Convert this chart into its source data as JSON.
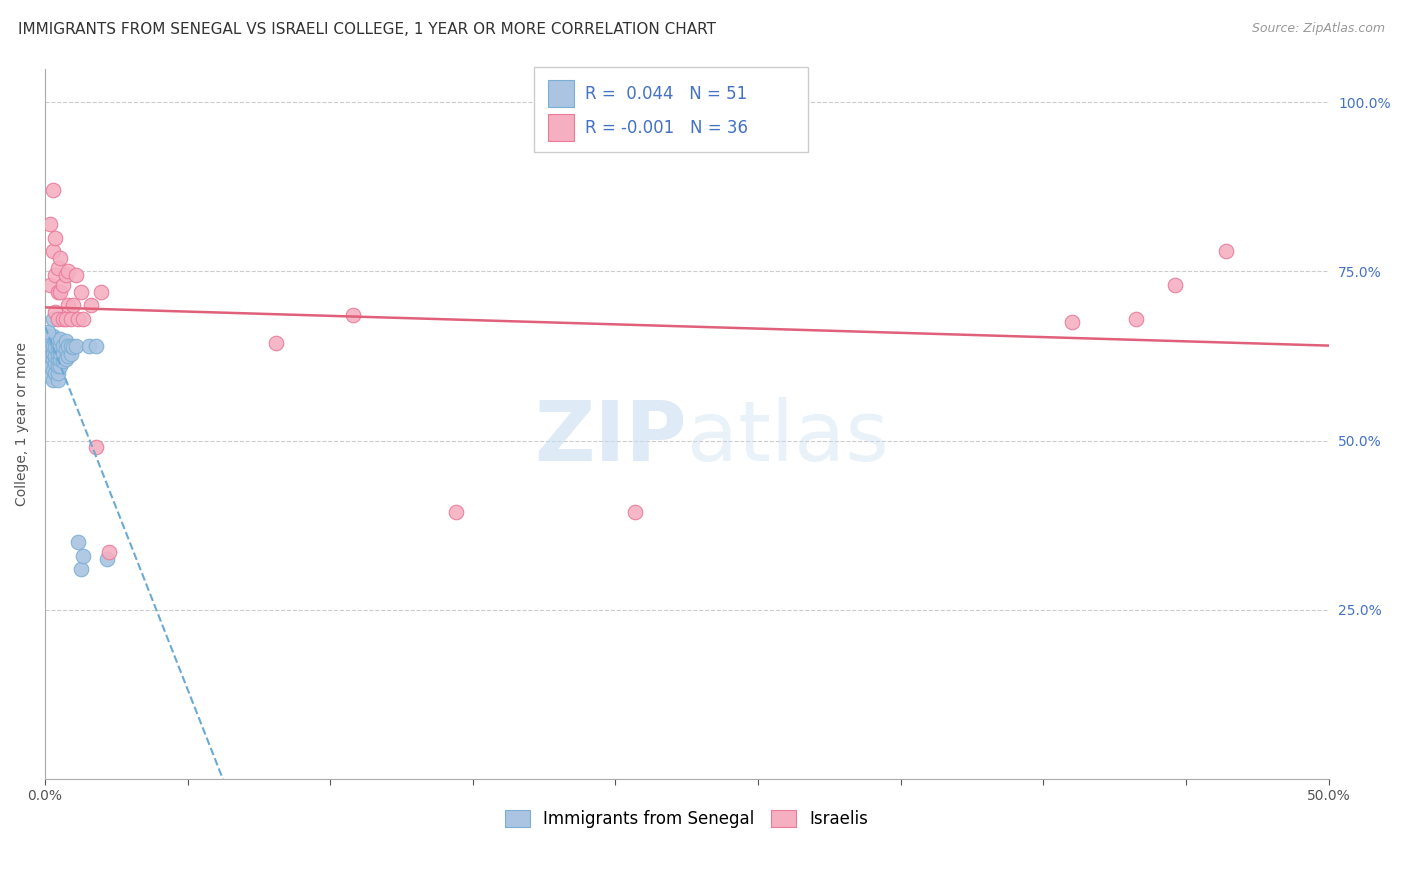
{
  "title": "IMMIGRANTS FROM SENEGAL VS ISRAELI COLLEGE, 1 YEAR OR MORE CORRELATION CHART",
  "source": "Source: ZipAtlas.com",
  "ylabel": "College, 1 year or more",
  "ylabel_ticks": [
    0.0,
    0.25,
    0.5,
    0.75,
    1.0
  ],
  "ylabel_tick_labels": [
    "",
    "25.0%",
    "50.0%",
    "75.0%",
    "100.0%"
  ],
  "xmin": 0.0,
  "xmax": 0.5,
  "ymin": 0.0,
  "ymax": 1.05,
  "legend_blue_label": "Immigrants from Senegal",
  "legend_pink_label": "Israelis",
  "R_blue": 0.044,
  "N_blue": 51,
  "R_pink": -0.001,
  "N_pink": 36,
  "blue_color": "#aac4e2",
  "pink_color": "#f5afc0",
  "blue_edge": "#7bafd4",
  "pink_edge": "#e87a9a",
  "trend_blue_color": "#6aaad4",
  "trend_pink_color": "#e0607a",
  "watermark_zip": "ZIP",
  "watermark_atlas": "atlas",
  "blue_x": [
    0.001,
    0.001,
    0.001,
    0.002,
    0.002,
    0.002,
    0.002,
    0.002,
    0.003,
    0.003,
    0.003,
    0.003,
    0.003,
    0.003,
    0.004,
    0.004,
    0.004,
    0.004,
    0.004,
    0.005,
    0.005,
    0.005,
    0.005,
    0.005,
    0.005,
    0.005,
    0.006,
    0.006,
    0.006,
    0.006,
    0.006,
    0.007,
    0.007,
    0.007,
    0.008,
    0.008,
    0.008,
    0.009,
    0.009,
    0.01,
    0.01,
    0.011,
    0.012,
    0.013,
    0.014,
    0.015,
    0.017,
    0.02,
    0.024,
    0.001,
    0.003
  ],
  "blue_y": [
    0.615,
    0.635,
    0.655,
    0.595,
    0.61,
    0.625,
    0.64,
    0.655,
    0.59,
    0.605,
    0.62,
    0.63,
    0.64,
    0.655,
    0.6,
    0.615,
    0.625,
    0.638,
    0.65,
    0.59,
    0.6,
    0.61,
    0.62,
    0.628,
    0.638,
    0.648,
    0.61,
    0.62,
    0.63,
    0.64,
    0.65,
    0.618,
    0.63,
    0.64,
    0.62,
    0.635,
    0.648,
    0.625,
    0.64,
    0.628,
    0.64,
    0.638,
    0.64,
    0.35,
    0.31,
    0.33,
    0.64,
    0.64,
    0.325,
    0.66,
    0.68
  ],
  "pink_x": [
    0.002,
    0.002,
    0.003,
    0.003,
    0.004,
    0.004,
    0.004,
    0.005,
    0.005,
    0.005,
    0.006,
    0.006,
    0.007,
    0.007,
    0.008,
    0.008,
    0.009,
    0.009,
    0.01,
    0.011,
    0.012,
    0.013,
    0.014,
    0.015,
    0.018,
    0.02,
    0.022,
    0.025,
    0.12,
    0.23,
    0.4,
    0.425,
    0.44,
    0.46,
    0.09,
    0.16
  ],
  "pink_y": [
    0.82,
    0.73,
    0.78,
    0.87,
    0.69,
    0.745,
    0.8,
    0.68,
    0.72,
    0.755,
    0.72,
    0.77,
    0.68,
    0.73,
    0.68,
    0.745,
    0.7,
    0.75,
    0.68,
    0.7,
    0.745,
    0.68,
    0.72,
    0.68,
    0.7,
    0.49,
    0.72,
    0.335,
    0.685,
    0.395,
    0.675,
    0.68,
    0.73,
    0.78,
    0.645,
    0.395
  ],
  "title_fontsize": 11,
  "source_fontsize": 9,
  "axis_label_fontsize": 10,
  "tick_fontsize": 10,
  "legend_fontsize": 12
}
